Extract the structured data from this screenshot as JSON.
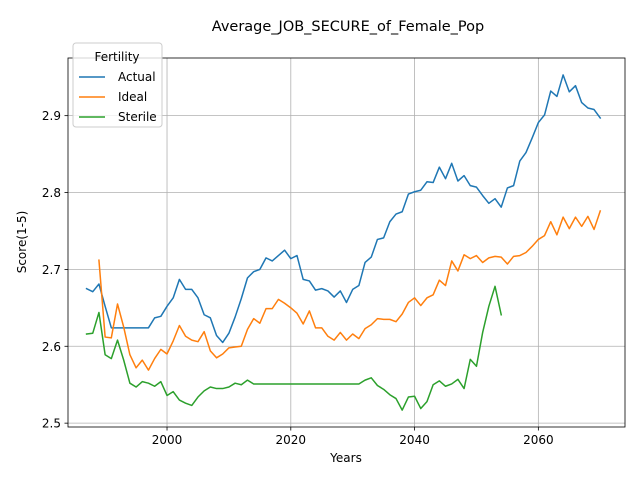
{
  "chart_data": {
    "type": "line",
    "title": "Average_JOB_SECURE_of_Female_Pop",
    "xlabel": "Years",
    "ylabel": "Score(1-5)",
    "xlim": [
      1984,
      2074
    ],
    "ylim": [
      2.495,
      2.975
    ],
    "xticks": [
      2000,
      2020,
      2040,
      2060
    ],
    "yticks": [
      2.5,
      2.6,
      2.7,
      2.8,
      2.9
    ],
    "grid": true,
    "legend": {
      "title": "Fertility",
      "placement": "top-left"
    },
    "series": [
      {
        "name": "Actual",
        "color": "#1f77b4",
        "points": [
          [
            1987,
            2.675
          ],
          [
            1988,
            2.671
          ],
          [
            1989,
            2.681
          ],
          [
            1990,
            2.652
          ],
          [
            1991,
            2.624
          ],
          [
            1992,
            2.624
          ],
          [
            1993,
            2.624
          ],
          [
            1994,
            2.624
          ],
          [
            1995,
            2.624
          ],
          [
            1996,
            2.624
          ],
          [
            1997,
            2.624
          ],
          [
            1998,
            2.637
          ],
          [
            1999,
            2.639
          ],
          [
            2000,
            2.652
          ],
          [
            2001,
            2.663
          ],
          [
            2002,
            2.687
          ],
          [
            2003,
            2.674
          ],
          [
            2004,
            2.674
          ],
          [
            2005,
            2.663
          ],
          [
            2006,
            2.641
          ],
          [
            2007,
            2.637
          ],
          [
            2008,
            2.614
          ],
          [
            2009,
            2.605
          ],
          [
            2010,
            2.617
          ],
          [
            2011,
            2.638
          ],
          [
            2012,
            2.662
          ],
          [
            2013,
            2.689
          ],
          [
            2014,
            2.697
          ],
          [
            2015,
            2.7
          ],
          [
            2016,
            2.715
          ],
          [
            2017,
            2.711
          ],
          [
            2018,
            2.718
          ],
          [
            2019,
            2.725
          ],
          [
            2020,
            2.714
          ],
          [
            2021,
            2.718
          ],
          [
            2022,
            2.687
          ],
          [
            2023,
            2.685
          ],
          [
            2024,
            2.673
          ],
          [
            2025,
            2.675
          ],
          [
            2026,
            2.672
          ],
          [
            2027,
            2.664
          ],
          [
            2028,
            2.672
          ],
          [
            2029,
            2.657
          ],
          [
            2030,
            2.674
          ],
          [
            2031,
            2.679
          ],
          [
            2032,
            2.709
          ],
          [
            2033,
            2.716
          ],
          [
            2034,
            2.739
          ],
          [
            2035,
            2.741
          ],
          [
            2036,
            2.762
          ],
          [
            2037,
            2.772
          ],
          [
            2038,
            2.775
          ],
          [
            2039,
            2.798
          ],
          [
            2040,
            2.801
          ],
          [
            2041,
            2.803
          ],
          [
            2042,
            2.814
          ],
          [
            2043,
            2.813
          ],
          [
            2044,
            2.833
          ],
          [
            2045,
            2.818
          ],
          [
            2046,
            2.838
          ],
          [
            2047,
            2.815
          ],
          [
            2048,
            2.822
          ],
          [
            2049,
            2.809
          ],
          [
            2050,
            2.807
          ],
          [
            2051,
            2.796
          ],
          [
            2052,
            2.786
          ],
          [
            2053,
            2.792
          ],
          [
            2054,
            2.781
          ],
          [
            2055,
            2.806
          ],
          [
            2056,
            2.809
          ],
          [
            2057,
            2.841
          ],
          [
            2058,
            2.852
          ],
          [
            2059,
            2.871
          ],
          [
            2060,
            2.891
          ],
          [
            2061,
            2.901
          ],
          [
            2062,
            2.932
          ],
          [
            2063,
            2.925
          ],
          [
            2064,
            2.953
          ],
          [
            2065,
            2.931
          ],
          [
            2066,
            2.939
          ],
          [
            2067,
            2.917
          ],
          [
            2068,
            2.91
          ],
          [
            2069,
            2.908
          ],
          [
            2070,
            2.897
          ]
        ]
      },
      {
        "name": "Ideal",
        "color": "#ff7f0e",
        "points": [
          [
            1989,
            2.712
          ],
          [
            1990,
            2.612
          ],
          [
            1991,
            2.611
          ],
          [
            1992,
            2.655
          ],
          [
            1993,
            2.625
          ],
          [
            1994,
            2.589
          ],
          [
            1995,
            2.572
          ],
          [
            1996,
            2.582
          ],
          [
            1997,
            2.569
          ],
          [
            1998,
            2.584
          ],
          [
            1999,
            2.596
          ],
          [
            2000,
            2.59
          ],
          [
            2001,
            2.607
          ],
          [
            2002,
            2.627
          ],
          [
            2003,
            2.613
          ],
          [
            2004,
            2.608
          ],
          [
            2005,
            2.606
          ],
          [
            2006,
            2.619
          ],
          [
            2007,
            2.594
          ],
          [
            2008,
            2.585
          ],
          [
            2009,
            2.59
          ],
          [
            2010,
            2.598
          ],
          [
            2011,
            2.599
          ],
          [
            2012,
            2.6
          ],
          [
            2013,
            2.622
          ],
          [
            2014,
            2.636
          ],
          [
            2015,
            2.63
          ],
          [
            2016,
            2.649
          ],
          [
            2017,
            2.649
          ],
          [
            2018,
            2.661
          ],
          [
            2019,
            2.656
          ],
          [
            2020,
            2.65
          ],
          [
            2021,
            2.643
          ],
          [
            2022,
            2.629
          ],
          [
            2023,
            2.646
          ],
          [
            2024,
            2.624
          ],
          [
            2025,
            2.624
          ],
          [
            2026,
            2.613
          ],
          [
            2027,
            2.608
          ],
          [
            2028,
            2.618
          ],
          [
            2029,
            2.608
          ],
          [
            2030,
            2.616
          ],
          [
            2031,
            2.61
          ],
          [
            2032,
            2.623
          ],
          [
            2033,
            2.628
          ],
          [
            2034,
            2.636
          ],
          [
            2035,
            2.635
          ],
          [
            2036,
            2.635
          ],
          [
            2037,
            2.632
          ],
          [
            2038,
            2.642
          ],
          [
            2039,
            2.657
          ],
          [
            2040,
            2.663
          ],
          [
            2041,
            2.653
          ],
          [
            2042,
            2.663
          ],
          [
            2043,
            2.667
          ],
          [
            2044,
            2.686
          ],
          [
            2045,
            2.679
          ],
          [
            2046,
            2.711
          ],
          [
            2047,
            2.698
          ],
          [
            2048,
            2.719
          ],
          [
            2049,
            2.714
          ],
          [
            2050,
            2.718
          ],
          [
            2051,
            2.709
          ],
          [
            2052,
            2.715
          ],
          [
            2053,
            2.717
          ],
          [
            2054,
            2.716
          ],
          [
            2055,
            2.707
          ],
          [
            2056,
            2.717
          ],
          [
            2057,
            2.718
          ],
          [
            2058,
            2.722
          ],
          [
            2059,
            2.73
          ],
          [
            2060,
            2.739
          ],
          [
            2061,
            2.744
          ],
          [
            2062,
            2.762
          ],
          [
            2063,
            2.745
          ],
          [
            2064,
            2.768
          ],
          [
            2065,
            2.753
          ],
          [
            2066,
            2.768
          ],
          [
            2067,
            2.756
          ],
          [
            2068,
            2.769
          ],
          [
            2069,
            2.752
          ],
          [
            2070,
            2.776
          ]
        ]
      },
      {
        "name": "Sterile",
        "color": "#2ca02c",
        "points": [
          [
            1987,
            2.616
          ],
          [
            1988,
            2.617
          ],
          [
            1989,
            2.644
          ],
          [
            1990,
            2.589
          ],
          [
            1991,
            2.584
          ],
          [
            1992,
            2.608
          ],
          [
            1993,
            2.582
          ],
          [
            1994,
            2.552
          ],
          [
            1995,
            2.547
          ],
          [
            1996,
            2.554
          ],
          [
            1997,
            2.552
          ],
          [
            1998,
            2.548
          ],
          [
            1999,
            2.554
          ],
          [
            2000,
            2.536
          ],
          [
            2001,
            2.541
          ],
          [
            2002,
            2.53
          ],
          [
            2003,
            2.526
          ],
          [
            2004,
            2.523
          ],
          [
            2005,
            2.534
          ],
          [
            2006,
            2.542
          ],
          [
            2007,
            2.547
          ],
          [
            2008,
            2.545
          ],
          [
            2009,
            2.545
          ],
          [
            2010,
            2.547
          ],
          [
            2011,
            2.552
          ],
          [
            2012,
            2.55
          ],
          [
            2013,
            2.556
          ],
          [
            2014,
            2.551
          ],
          [
            2015,
            2.551
          ],
          [
            2016,
            2.551
          ],
          [
            2017,
            2.551
          ],
          [
            2018,
            2.551
          ],
          [
            2019,
            2.551
          ],
          [
            2020,
            2.551
          ],
          [
            2021,
            2.551
          ],
          [
            2022,
            2.551
          ],
          [
            2023,
            2.551
          ],
          [
            2024,
            2.551
          ],
          [
            2025,
            2.551
          ],
          [
            2026,
            2.551
          ],
          [
            2027,
            2.551
          ],
          [
            2028,
            2.551
          ],
          [
            2029,
            2.551
          ],
          [
            2030,
            2.551
          ],
          [
            2031,
            2.551
          ],
          [
            2032,
            2.556
          ],
          [
            2033,
            2.559
          ],
          [
            2034,
            2.549
          ],
          [
            2035,
            2.544
          ],
          [
            2036,
            2.537
          ],
          [
            2037,
            2.532
          ],
          [
            2038,
            2.517
          ],
          [
            2039,
            2.534
          ],
          [
            2040,
            2.535
          ],
          [
            2041,
            2.519
          ],
          [
            2042,
            2.528
          ],
          [
            2043,
            2.55
          ],
          [
            2044,
            2.555
          ],
          [
            2045,
            2.548
          ],
          [
            2046,
            2.551
          ],
          [
            2047,
            2.557
          ],
          [
            2048,
            2.545
          ],
          [
            2049,
            2.583
          ],
          [
            2050,
            2.574
          ],
          [
            2051,
            2.618
          ],
          [
            2052,
            2.652
          ],
          [
            2053,
            2.678
          ],
          [
            2054,
            2.641
          ]
        ]
      }
    ]
  }
}
